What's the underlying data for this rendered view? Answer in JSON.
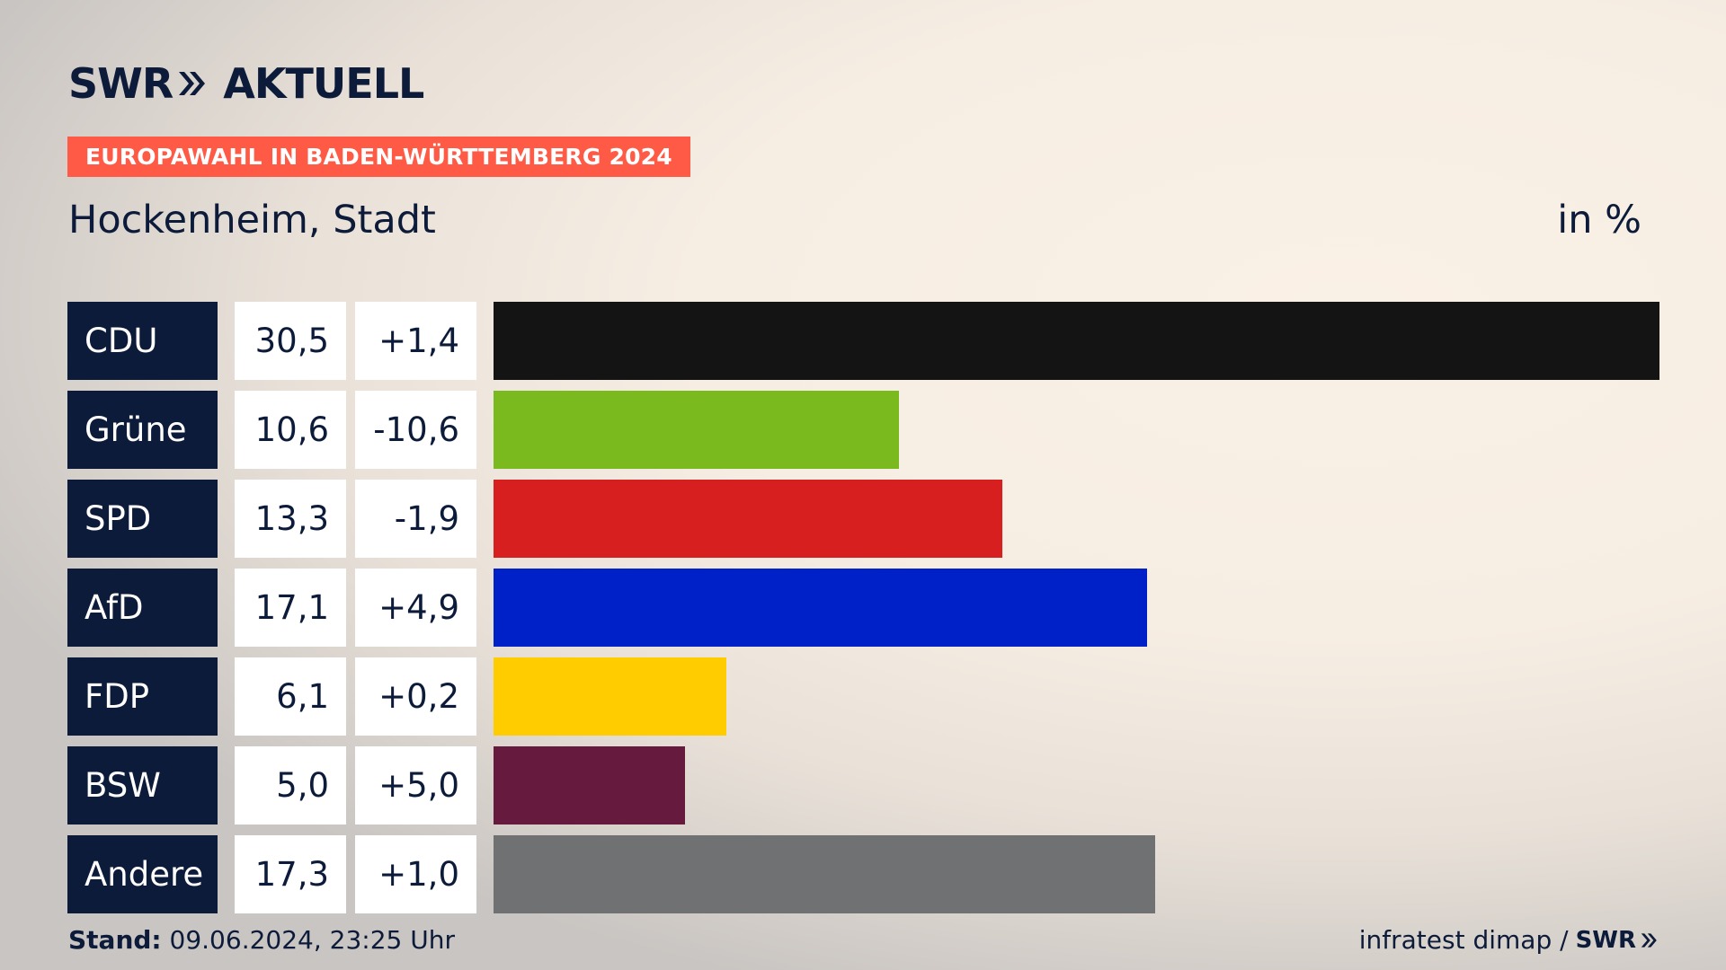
{
  "header": {
    "logo_swr": "SWR",
    "logo_aktuell": "AKTUELL",
    "badge": "EUROPAWAHL IN BADEN-WÜRTTEMBERG 2024",
    "title": "Hockenheim, Stadt",
    "unit": "in %"
  },
  "footer": {
    "stand_label": "Stand:",
    "stand_value": "09.06.2024, 23:25 Uhr",
    "source": "infratest dimap /",
    "source_logo": "SWR"
  },
  "colors": {
    "navy": "#0d1b3a",
    "accent": "#ff5a45"
  },
  "chart_data": {
    "type": "bar",
    "orientation": "horizontal",
    "title": "Hockenheim, Stadt",
    "unit": "in %",
    "categories": [
      "CDU",
      "Grüne",
      "SPD",
      "AfD",
      "FDP",
      "BSW",
      "Andere"
    ],
    "values": [
      30.5,
      10.6,
      13.3,
      17.1,
      6.1,
      5.0,
      17.3
    ],
    "value_labels": [
      "30,5",
      "10,6",
      "13,3",
      "17,1",
      "6,1",
      "5,0",
      "17,3"
    ],
    "differences": [
      1.4,
      -10.6,
      -1.9,
      4.9,
      0.2,
      5.0,
      1.0
    ],
    "difference_labels": [
      "+1,4",
      "-10,6",
      "-1,9",
      "+4,9",
      "+0,2",
      "+5,0",
      "+1,0"
    ],
    "colors": [
      "#141414",
      "#7aba1e",
      "#d71f1f",
      "#0021c8",
      "#ffcc00",
      "#661a3d",
      "#707173"
    ],
    "xlim": [
      0,
      30.5
    ],
    "grid": false,
    "legend": "none"
  }
}
